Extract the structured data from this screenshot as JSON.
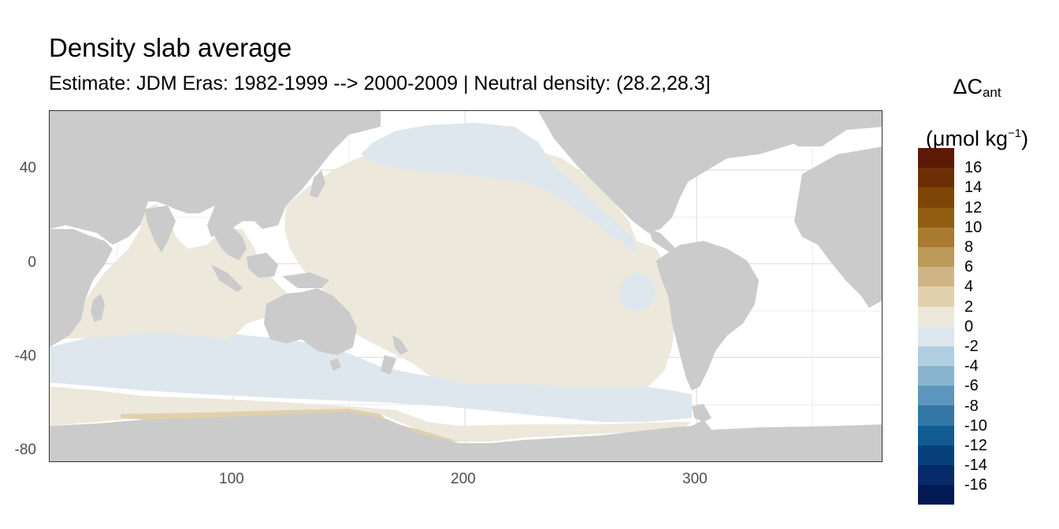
{
  "title": "Density slab average",
  "subtitle": "Estimate: JDM Eras: 1982-1999 --> 2000-2009 | Neutral density: (28.2,28.3]",
  "legend": {
    "title_main": "ΔC",
    "title_sub": "ant",
    "unit_pre": "(μmol kg",
    "unit_sup": "−1",
    "unit_post": ")",
    "labels": [
      "16",
      "14",
      "12",
      "10",
      "8",
      "6",
      "4",
      "2",
      "0",
      "-2",
      "-4",
      "-6",
      "-8",
      "-10",
      "-12",
      "-14",
      "-16"
    ],
    "colors": [
      "#5a1a05",
      "#6e2e05",
      "#7f4506",
      "#925d10",
      "#a87b30",
      "#bb9a5a",
      "#cfb586",
      "#e1d0ac",
      "#ede8dc",
      "#dde7ed",
      "#b1cfe0",
      "#88b4cf",
      "#5c96bc",
      "#3377a7",
      "#105c93",
      "#07417b",
      "#062a6a",
      "#031a55"
    ]
  },
  "axes": {
    "x_ticks": [
      "100",
      "200",
      "300"
    ],
    "y_ticks": [
      "40",
      "0",
      "-40",
      "-80"
    ],
    "xlim": [
      20,
      380
    ],
    "ylim": [
      -85,
      65
    ]
  },
  "colors": {
    "land": "#cbcbcb",
    "ocean_no_data": "#ffffff",
    "grid": "#ebebeb",
    "positive_0_2": "#ede8dc",
    "negative_0_2": "#dde7ed",
    "positive_2_4": "#e1d0ac"
  }
}
